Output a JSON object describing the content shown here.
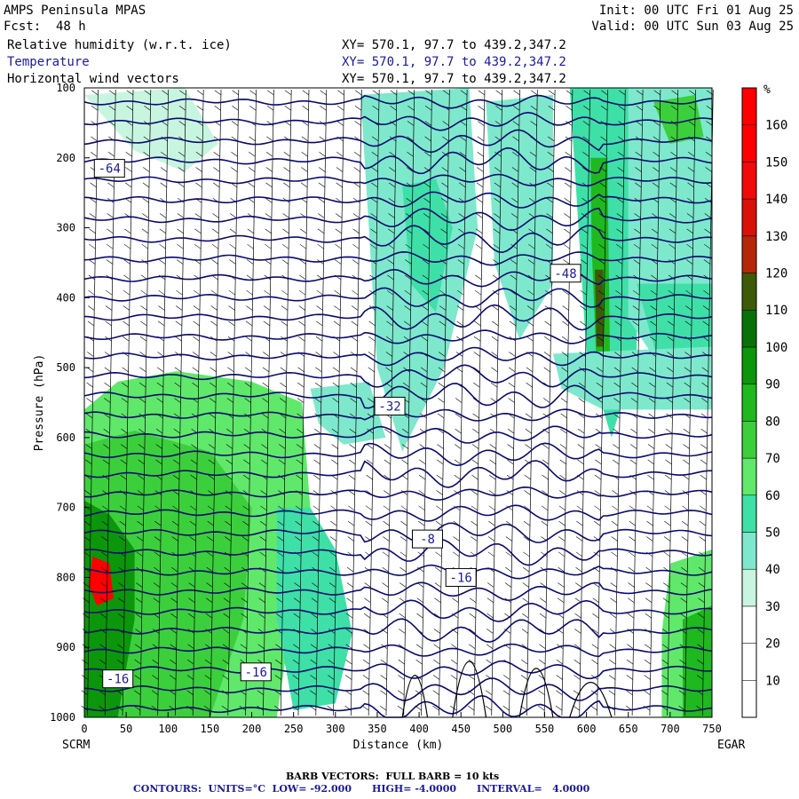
{
  "header": {
    "model": "AMPS Peninsula MPAS",
    "fcst": "Fcst:  48 h",
    "init": "Init: 00 UTC Fri 01 Aug 25",
    "valid": "Valid: 00 UTC Sun 03 Aug 25",
    "fields": [
      {
        "name": "Relative humidity (w.r.t. ice)",
        "xy": "XY= 570.1, 97.7 to 439.2,347.2"
      },
      {
        "name": "Temperature",
        "xy": "XY= 570.1, 97.7 to 439.2,347.2"
      },
      {
        "name": "Horizontal wind vectors",
        "xy": "XY= 570.1, 97.7 to 439.2,347.2"
      }
    ]
  },
  "footer": {
    "barb": "BARB VECTORS:  FULL BARB = 10 kts",
    "contours": "CONTOURS:  UNITS=°C  LOW= -92.000      HIGH= -4.0000      INTERVAL=   4.0000"
  },
  "colors": {
    "contour": "#0a0a6e",
    "temp_label": "#1a1a9a",
    "rh_scale": [
      "#ffffff",
      "#ffffff",
      "#ffffff",
      "#c8f5e0",
      "#7ee8cc",
      "#3fdfa8",
      "#60e86a",
      "#3ccf3c",
      "#1fb81f",
      "#0b960b",
      "#087208",
      "#3c5a08",
      "#b42808",
      "#d81208",
      "#f00a0a",
      "#ff0000",
      "#ff0000"
    ]
  },
  "chart_data": {
    "type": "heatmap",
    "title": "AMPS Peninsula MPAS",
    "xlabel": "Distance (km)",
    "ylabel": "Pressure (hPa)",
    "xlim": [
      0,
      750
    ],
    "ylim": [
      1000,
      100
    ],
    "x_ticks": [
      0,
      50,
      100,
      150,
      200,
      250,
      300,
      350,
      400,
      450,
      500,
      550,
      600,
      650,
      700,
      750
    ],
    "y_ticks": [
      100,
      200,
      300,
      400,
      500,
      600,
      700,
      800,
      900,
      1000
    ],
    "x_endpoints": {
      "left": "SCRM",
      "right": "EGAR"
    },
    "colorbar": {
      "unit": "%",
      "ticks": [
        10,
        20,
        30,
        40,
        50,
        60,
        70,
        80,
        90,
        100,
        110,
        120,
        130,
        140,
        150,
        160
      ],
      "range": [
        0,
        170
      ]
    },
    "temperature_contours": {
      "units": "°C",
      "low": -92,
      "high": -4,
      "interval": 4
    },
    "contour_labels": [
      {
        "text": "-64",
        "x": 30,
        "p": 215
      },
      {
        "text": "-48",
        "x": 575,
        "p": 365
      },
      {
        "text": "-32",
        "x": 365,
        "p": 555
      },
      {
        "text": "-8",
        "x": 410,
        "p": 745
      },
      {
        "text": "-16",
        "x": 450,
        "p": 800
      },
      {
        "text": "-16",
        "x": 40,
        "p": 945
      },
      {
        "text": "-16",
        "x": 205,
        "p": 935
      }
    ]
  }
}
